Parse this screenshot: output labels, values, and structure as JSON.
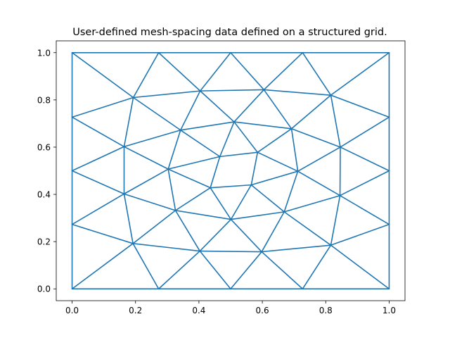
{
  "chart_data": {
    "type": "line",
    "title": "User-defined mesh-spacing data defined on a structured grid.",
    "xlabel": "",
    "ylabel": "",
    "xlim": [
      -0.05,
      1.05
    ],
    "ylim": [
      -0.05,
      1.05
    ],
    "xticks": [
      0.0,
      0.2,
      0.4,
      0.6,
      0.8,
      1.0
    ],
    "yticks": [
      0.0,
      0.2,
      0.4,
      0.6,
      0.8,
      1.0
    ],
    "xtick_labels": [
      "0.0",
      "0.2",
      "0.4",
      "0.6",
      "0.8",
      "1.0"
    ],
    "ytick_labels": [
      "0.0",
      "0.2",
      "0.4",
      "0.6",
      "0.8",
      "1.0"
    ],
    "grid": false,
    "legend": "none",
    "colors": {
      "mesh": "#1f77b4"
    },
    "mesh": {
      "nodes": [
        [
          0,
          0
        ],
        [
          0.273,
          0
        ],
        [
          0.5,
          0
        ],
        [
          0.727,
          0
        ],
        [
          1,
          0
        ],
        [
          1,
          0.273
        ],
        [
          1,
          0.5
        ],
        [
          1,
          0.727
        ],
        [
          1,
          1
        ],
        [
          0.727,
          1
        ],
        [
          0.5,
          1
        ],
        [
          0.273,
          1
        ],
        [
          0,
          1
        ],
        [
          0,
          0.727
        ],
        [
          0,
          0.5
        ],
        [
          0,
          0.273
        ],
        [
          0.192,
          0.192
        ],
        [
          0.403,
          0.16
        ],
        [
          0.598,
          0.157
        ],
        [
          0.816,
          0.185
        ],
        [
          0.845,
          0.395
        ],
        [
          0.846,
          0.6
        ],
        [
          0.816,
          0.82
        ],
        [
          0.605,
          0.843
        ],
        [
          0.404,
          0.838
        ],
        [
          0.193,
          0.81
        ],
        [
          0.164,
          0.602
        ],
        [
          0.164,
          0.402
        ],
        [
          0.326,
          0.332
        ],
        [
          0.501,
          0.294
        ],
        [
          0.669,
          0.326
        ],
        [
          0.712,
          0.498
        ],
        [
          0.692,
          0.678
        ],
        [
          0.511,
          0.707
        ],
        [
          0.342,
          0.672
        ],
        [
          0.303,
          0.507
        ],
        [
          0.436,
          0.428
        ],
        [
          0.565,
          0.44
        ],
        [
          0.585,
          0.578
        ],
        [
          0.466,
          0.56
        ]
      ],
      "edges": [
        [
          0,
          1
        ],
        [
          1,
          2
        ],
        [
          2,
          3
        ],
        [
          3,
          4
        ],
        [
          4,
          5
        ],
        [
          5,
          6
        ],
        [
          6,
          7
        ],
        [
          7,
          8
        ],
        [
          8,
          9
        ],
        [
          9,
          10
        ],
        [
          10,
          11
        ],
        [
          11,
          12
        ],
        [
          12,
          13
        ],
        [
          13,
          14
        ],
        [
          14,
          15
        ],
        [
          15,
          0
        ],
        [
          0,
          16
        ],
        [
          15,
          16
        ],
        [
          1,
          16
        ],
        [
          1,
          17
        ],
        [
          2,
          17
        ],
        [
          2,
          18
        ],
        [
          3,
          18
        ],
        [
          3,
          19
        ],
        [
          4,
          19
        ],
        [
          5,
          19
        ],
        [
          5,
          20
        ],
        [
          6,
          20
        ],
        [
          6,
          21
        ],
        [
          7,
          21
        ],
        [
          7,
          22
        ],
        [
          8,
          22
        ],
        [
          9,
          22
        ],
        [
          9,
          23
        ],
        [
          10,
          23
        ],
        [
          10,
          24
        ],
        [
          11,
          24
        ],
        [
          11,
          25
        ],
        [
          12,
          25
        ],
        [
          13,
          25
        ],
        [
          13,
          26
        ],
        [
          14,
          26
        ],
        [
          14,
          27
        ],
        [
          15,
          27
        ],
        [
          16,
          17
        ],
        [
          17,
          18
        ],
        [
          18,
          19
        ],
        [
          19,
          20
        ],
        [
          20,
          21
        ],
        [
          21,
          22
        ],
        [
          22,
          23
        ],
        [
          23,
          24
        ],
        [
          24,
          25
        ],
        [
          25,
          26
        ],
        [
          26,
          27
        ],
        [
          27,
          16
        ],
        [
          16,
          28
        ],
        [
          27,
          28
        ],
        [
          17,
          28
        ],
        [
          17,
          29
        ],
        [
          18,
          29
        ],
        [
          18,
          30
        ],
        [
          19,
          30
        ],
        [
          20,
          30
        ],
        [
          20,
          31
        ],
        [
          21,
          31
        ],
        [
          21,
          32
        ],
        [
          22,
          32
        ],
        [
          23,
          32
        ],
        [
          23,
          33
        ],
        [
          24,
          33
        ],
        [
          24,
          34
        ],
        [
          25,
          34
        ],
        [
          26,
          34
        ],
        [
          26,
          35
        ],
        [
          27,
          35
        ],
        [
          28,
          29
        ],
        [
          29,
          30
        ],
        [
          30,
          31
        ],
        [
          31,
          32
        ],
        [
          32,
          33
        ],
        [
          33,
          34
        ],
        [
          34,
          35
        ],
        [
          35,
          28
        ],
        [
          28,
          36
        ],
        [
          29,
          36
        ],
        [
          29,
          37
        ],
        [
          30,
          37
        ],
        [
          31,
          37
        ],
        [
          31,
          38
        ],
        [
          32,
          38
        ],
        [
          33,
          38
        ],
        [
          33,
          39
        ],
        [
          34,
          39
        ],
        [
          35,
          39
        ],
        [
          35,
          36
        ],
        [
          36,
          37
        ],
        [
          37,
          38
        ],
        [
          38,
          39
        ],
        [
          39,
          36
        ]
      ]
    }
  }
}
